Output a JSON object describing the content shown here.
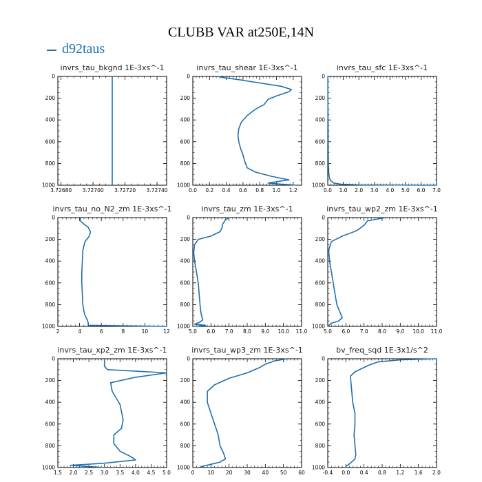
{
  "title": "CLUBB VAR at250E,14N",
  "legend": {
    "label": "d92taus",
    "color": "#1f6fb0"
  },
  "chart_data": [
    {
      "type": "line",
      "title": "invrs_tau_bkgnd   1E-3xs^-1",
      "xlim": [
        3.72678,
        3.72746
      ],
      "xticks": [
        {
          "v": 3.7268,
          "t": "3.72680"
        },
        {
          "v": 3.727,
          "t": "3.72700"
        },
        {
          "v": 3.7272,
          "t": "3.72720"
        },
        {
          "v": 3.7274,
          "t": "3.72740"
        }
      ],
      "ylim": [
        0,
        1000
      ],
      "yticks": [
        0,
        200,
        400,
        600,
        800,
        1000
      ],
      "series": [
        {
          "x": [
            3.72712,
            3.72712
          ],
          "y": [
            0,
            1000
          ]
        }
      ]
    },
    {
      "type": "line",
      "title": "invrs_tau_shear   1E-3xs^-1",
      "xlim": [
        0,
        1.3
      ],
      "xticks": [
        {
          "v": 0,
          "t": "0.0"
        },
        {
          "v": 0.2,
          "t": "0.2"
        },
        {
          "v": 0.4,
          "t": "0.4"
        },
        {
          "v": 0.6,
          "t": "0.6"
        },
        {
          "v": 0.8,
          "t": "0.8"
        },
        {
          "v": 1.0,
          "t": "1.0"
        },
        {
          "v": 1.2,
          "t": "1.2"
        }
      ],
      "ylim": [
        0,
        1000
      ],
      "yticks": [
        0,
        200,
        400,
        600,
        800,
        1000
      ],
      "series": [
        {
          "x": [
            0.3,
            0.36,
            0.55,
            0.8,
            1.05,
            1.18,
            1.15,
            1.0,
            0.9,
            0.85,
            0.75,
            0.65,
            0.58,
            0.55,
            0.54,
            0.55,
            0.57,
            0.6,
            0.62,
            0.65,
            0.75,
            0.95,
            1.15,
            0.9,
            1.05,
            1.25
          ],
          "y": [
            0,
            10,
            30,
            60,
            90,
            120,
            140,
            180,
            210,
            260,
            300,
            360,
            420,
            480,
            540,
            600,
            660,
            720,
            780,
            840,
            880,
            920,
            950,
            980,
            990,
            1000
          ]
        }
      ]
    },
    {
      "type": "line",
      "title": "invrs_tau_sfc   1E-3xs^-1",
      "xlim": [
        0,
        7
      ],
      "xticks": [
        {
          "v": 0,
          "t": "0.0"
        },
        {
          "v": 1,
          "t": "1.0"
        },
        {
          "v": 2,
          "t": "2.0"
        },
        {
          "v": 3,
          "t": "3.0"
        },
        {
          "v": 4,
          "t": "4.0"
        },
        {
          "v": 5,
          "t": "5.0"
        },
        {
          "v": 6,
          "t": "6.0"
        },
        {
          "v": 7,
          "t": "7.0"
        }
      ],
      "ylim": [
        0,
        1000
      ],
      "yticks": [
        0,
        200,
        400,
        600,
        800,
        1000
      ],
      "series": [
        {
          "x": [
            0.01,
            0.01,
            0.02,
            0.03,
            0.04,
            0.06,
            0.1,
            0.2,
            0.4,
            0.8,
            2.0,
            7.0
          ],
          "y": [
            0,
            200,
            400,
            600,
            800,
            880,
            930,
            960,
            980,
            990,
            997,
            1000
          ]
        }
      ]
    },
    {
      "type": "line",
      "title": "invrs_tau_no_N2_zm   1E-3xs^-1",
      "xlim": [
        2,
        12
      ],
      "xticks": [
        {
          "v": 2,
          "t": "2"
        },
        {
          "v": 4,
          "t": "4"
        },
        {
          "v": 6,
          "t": "6"
        },
        {
          "v": 8,
          "t": "8"
        },
        {
          "v": 10,
          "t": "10"
        },
        {
          "v": 12,
          "t": "12"
        }
      ],
      "ylim": [
        0,
        1000
      ],
      "yticks": [
        0,
        200,
        400,
        600,
        800,
        1000
      ],
      "series": [
        {
          "x": [
            4.1,
            4.05,
            4.4,
            4.8,
            5.0,
            4.9,
            4.5,
            4.3,
            4.25,
            4.2,
            4.2,
            4.25,
            4.3,
            4.4,
            4.5,
            4.7,
            4.8,
            4.8,
            12.0
          ],
          "y": [
            0,
            30,
            60,
            90,
            130,
            170,
            220,
            300,
            400,
            500,
            600,
            700,
            800,
            860,
            900,
            940,
            970,
            990,
            1000
          ]
        }
      ]
    },
    {
      "type": "line",
      "title": "invrs_tau_zm   1E-3xs^-1",
      "xlim": [
        5,
        11
      ],
      "xticks": [
        {
          "v": 5,
          "t": "5.0"
        },
        {
          "v": 6,
          "t": "6.0"
        },
        {
          "v": 7,
          "t": "7.0"
        },
        {
          "v": 8,
          "t": "8.0"
        },
        {
          "v": 9,
          "t": "9.0"
        },
        {
          "v": 10,
          "t": "10.0"
        },
        {
          "v": 11,
          "t": "11.0"
        }
      ],
      "ylim": [
        0,
        1000
      ],
      "yticks": [
        0,
        200,
        400,
        600,
        800,
        1000
      ],
      "series": [
        {
          "x": [
            7.0,
            6.8,
            6.65,
            6.6,
            6.5,
            6.0,
            5.3,
            5.1,
            5.05,
            5.1,
            5.2,
            5.3,
            5.35,
            5.4,
            5.45,
            5.55,
            5.4,
            5.1,
            5.7,
            5.1
          ],
          "y": [
            0,
            20,
            60,
            100,
            130,
            170,
            200,
            250,
            320,
            400,
            500,
            600,
            700,
            800,
            880,
            940,
            960,
            980,
            990,
            1000
          ]
        }
      ]
    },
    {
      "type": "line",
      "title": "invrs_tau_wp2_zm   1E-3xs^-1",
      "xlim": [
        5,
        11
      ],
      "xticks": [
        {
          "v": 5,
          "t": "5.0"
        },
        {
          "v": 6,
          "t": "6.0"
        },
        {
          "v": 7,
          "t": "7.0"
        },
        {
          "v": 8,
          "t": "8.0"
        },
        {
          "v": 9,
          "t": "9.0"
        },
        {
          "v": 10,
          "t": "10.0"
        },
        {
          "v": 11,
          "t": "11.0"
        }
      ],
      "ylim": [
        0,
        1000
      ],
      "yticks": [
        0,
        200,
        400,
        600,
        800,
        1000
      ],
      "series": [
        {
          "x": [
            8.2,
            7.2,
            7.0,
            6.6,
            5.8,
            5.2,
            5.05,
            5.1,
            5.2,
            5.3,
            5.4,
            5.5,
            5.7,
            5.8,
            5.6,
            5.2,
            5.0
          ],
          "y": [
            0,
            30,
            70,
            120,
            170,
            220,
            300,
            400,
            500,
            600,
            700,
            800,
            880,
            920,
            950,
            970,
            1000
          ]
        }
      ]
    },
    {
      "type": "line",
      "title": "invrs_tau_xp2_zm   1E-3xs^-1",
      "xlim": [
        1.5,
        5
      ],
      "xticks": [
        {
          "v": 1.5,
          "t": "1.5"
        },
        {
          "v": 2.0,
          "t": "2.0"
        },
        {
          "v": 2.5,
          "t": "2.5"
        },
        {
          "v": 3.0,
          "t": "3.0"
        },
        {
          "v": 3.5,
          "t": "3.5"
        },
        {
          "v": 4.0,
          "t": "4.0"
        },
        {
          "v": 4.5,
          "t": "4.5"
        },
        {
          "v": 5.0,
          "t": "5.0"
        }
      ],
      "ylim": [
        0,
        1000
      ],
      "yticks": [
        0,
        200,
        400,
        600,
        800,
        1000
      ],
      "series": [
        {
          "x": [
            3.0,
            3.0,
            3.1,
            5.0,
            4.0,
            3.2,
            3.25,
            3.5,
            3.6,
            3.55,
            3.3,
            3.3,
            3.5,
            3.85,
            4.0,
            3.0,
            1.9,
            3.0
          ],
          "y": [
            0,
            70,
            100,
            130,
            170,
            220,
            300,
            420,
            560,
            640,
            700,
            780,
            850,
            900,
            930,
            960,
            980,
            1000
          ]
        }
      ]
    },
    {
      "type": "line",
      "title": "invrs_tau_wp3_zm   1E-3xs^-1",
      "xlim": [
        0,
        60
      ],
      "xticks": [
        {
          "v": 0,
          "t": "0"
        },
        {
          "v": 10,
          "t": "10"
        },
        {
          "v": 20,
          "t": "20"
        },
        {
          "v": 30,
          "t": "30"
        },
        {
          "v": 40,
          "t": "40"
        },
        {
          "v": 50,
          "t": "50"
        },
        {
          "v": 60,
          "t": "60"
        }
      ],
      "ylim": [
        0,
        1000
      ],
      "yticks": [
        0,
        200,
        400,
        600,
        800,
        1000
      ],
      "series": [
        {
          "x": [
            52,
            45,
            40,
            37,
            30,
            20,
            12,
            8,
            8,
            10,
            12,
            14,
            15,
            17,
            18,
            15,
            10,
            5,
            4
          ],
          "y": [
            0,
            20,
            50,
            80,
            130,
            180,
            240,
            300,
            400,
            500,
            600,
            700,
            800,
            870,
            920,
            950,
            970,
            990,
            1000
          ]
        }
      ]
    },
    {
      "type": "line",
      "title": "bv_freq_sqd   1E-3x1/s^2",
      "xlim": [
        -0.4,
        2.0
      ],
      "xticks": [
        {
          "v": -0.4,
          "t": "-0.4"
        },
        {
          "v": 0,
          "t": "0.0"
        },
        {
          "v": 0.4,
          "t": "0.4"
        },
        {
          "v": 0.8,
          "t": "0.8"
        },
        {
          "v": 1.2,
          "t": "1.2"
        },
        {
          "v": 1.6,
          "t": "1.6"
        },
        {
          "v": 2.0,
          "t": "2.0"
        }
      ],
      "ylim": [
        0,
        1000
      ],
      "yticks": [
        0,
        200,
        400,
        600,
        800,
        1000
      ],
      "series": [
        {
          "x": [
            2.0,
            1.2,
            0.7,
            0.5,
            0.2,
            0.1,
            0.12,
            0.15,
            0.2,
            0.2,
            0.18,
            0.2,
            0.22,
            0.2,
            0.1,
            0.0,
            0.0
          ],
          "y": [
            0,
            10,
            30,
            60,
            120,
            160,
            250,
            400,
            500,
            600,
            700,
            800,
            880,
            920,
            960,
            990,
            1000
          ]
        }
      ]
    }
  ]
}
